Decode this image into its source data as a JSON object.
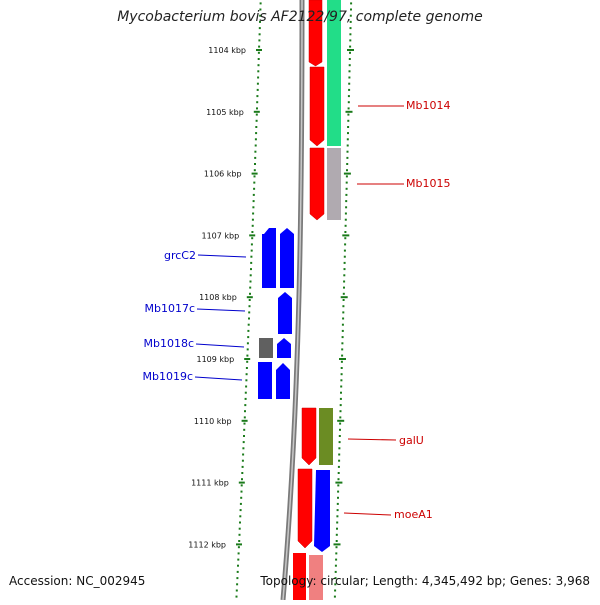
{
  "title": "Mycobacterium bovis AF2122/97, complete genome",
  "accession": "Accession: NC_002945",
  "summary": "Topology: circular; Length: 4,345,492 bp; Genes: 3,968",
  "colors": {
    "forward_label": "#cc0000",
    "reverse_label": "#0000cc",
    "tick": "#1a7a1a",
    "backbone": "#888888",
    "cds": "#ff0000",
    "gene_blue": "#0000ff",
    "green_track": "#22dd88",
    "gray_track": "#b0aab0",
    "olive_track": "#6b8c23"
  },
  "ticks": [
    {
      "label": "1104 kbp"
    },
    {
      "label": "1105 kbp"
    },
    {
      "label": "1106 kbp"
    },
    {
      "label": "1107 kbp"
    },
    {
      "label": "1108 kbp"
    },
    {
      "label": "1109 kbp"
    },
    {
      "label": "1110 kbp"
    },
    {
      "label": "1111 kbp"
    },
    {
      "label": "1112 kbp"
    }
  ],
  "reverse_genes": [
    {
      "name": "grcC2"
    },
    {
      "name": "Mb1017c"
    },
    {
      "name": "Mb1018c"
    },
    {
      "name": "Mb1019c"
    }
  ],
  "forward_genes": [
    {
      "name": "Mb1014"
    },
    {
      "name": "Mb1015"
    },
    {
      "name": "galU"
    },
    {
      "name": "moeA1"
    }
  ]
}
